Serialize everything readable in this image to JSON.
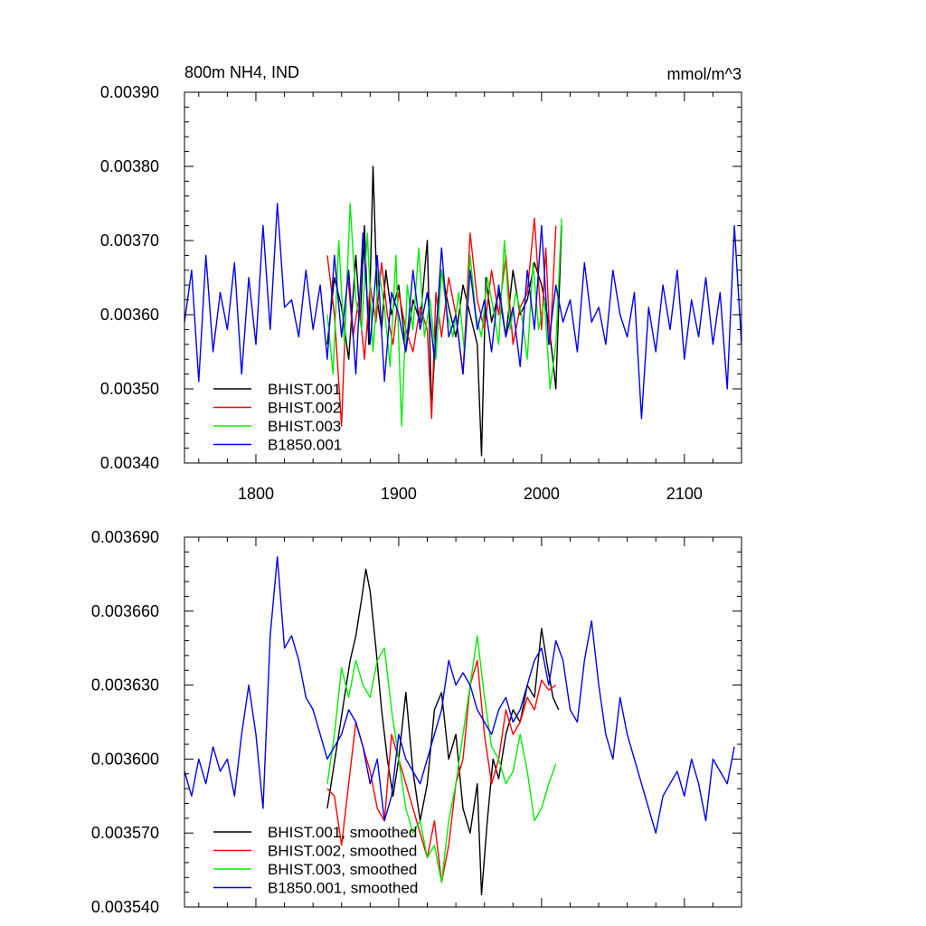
{
  "chart_data": [
    {
      "type": "line",
      "title": "800m NH4, IND",
      "units": "mmol/m^3",
      "xlim": [
        1750,
        2140
      ],
      "ylim": [
        0.0034,
        0.0039
      ],
      "x_ticks": [
        1800,
        1900,
        2000,
        2100
      ],
      "x_tick_labels": [
        "1800",
        "1900",
        "2000",
        "2100"
      ],
      "y_ticks": [
        0.0034,
        0.0035,
        0.0036,
        0.0037,
        0.0038,
        0.0039
      ],
      "y_tick_labels": [
        "0.00340",
        "0.00350",
        "0.00360",
        "0.00370",
        "0.00380",
        "0.00390"
      ],
      "legend_position": "bottom-left",
      "series": [
        {
          "name": "BHIST.001",
          "color": "#000000",
          "x": [
            1850,
            1855,
            1860,
            1865,
            1870,
            1873,
            1876,
            1879,
            1882,
            1885,
            1888,
            1891,
            1895,
            1900,
            1905,
            1910,
            1915,
            1920,
            1923,
            1926,
            1930,
            1935,
            1940,
            1945,
            1950,
            1955,
            1958,
            1961,
            1965,
            1970,
            1975,
            1980,
            1985,
            1990,
            1995,
            2000,
            2005,
            2010,
            2014
          ],
          "y": [
            0.00356,
            0.00365,
            0.00361,
            0.00354,
            0.00368,
            0.00359,
            0.00372,
            0.00356,
            0.0038,
            0.00362,
            0.00358,
            0.00366,
            0.0036,
            0.00364,
            0.00355,
            0.00362,
            0.00359,
            0.0037,
            0.00347,
            0.00358,
            0.00366,
            0.00361,
            0.00357,
            0.00364,
            0.0036,
            0.00356,
            0.00341,
            0.00365,
            0.00359,
            0.00363,
            0.00357,
            0.00366,
            0.0036,
            0.00362,
            0.00367,
            0.00364,
            0.00359,
            0.0035,
            0.00372
          ]
        },
        {
          "name": "BHIST.002",
          "color": "#ff0000",
          "x": [
            1850,
            1855,
            1860,
            1864,
            1868,
            1872,
            1876,
            1880,
            1884,
            1888,
            1892,
            1896,
            1900,
            1905,
            1910,
            1915,
            1920,
            1923,
            1926,
            1930,
            1935,
            1940,
            1945,
            1950,
            1955,
            1960,
            1965,
            1970,
            1975,
            1980,
            1985,
            1990,
            1995,
            2000,
            2003,
            2006,
            2010
          ],
          "y": [
            0.00368,
            0.0036,
            0.00345,
            0.00366,
            0.00357,
            0.00362,
            0.00354,
            0.00364,
            0.00359,
            0.00367,
            0.0036,
            0.00356,
            0.00363,
            0.00358,
            0.00355,
            0.00361,
            0.00358,
            0.00346,
            0.00363,
            0.00357,
            0.00365,
            0.0036,
            0.00352,
            0.00371,
            0.00362,
            0.00358,
            0.00366,
            0.0036,
            0.00368,
            0.00356,
            0.00361,
            0.00363,
            0.00373,
            0.00358,
            0.00369,
            0.00356,
            0.00372
          ]
        },
        {
          "name": "BHIST.003",
          "color": "#00ee00",
          "x": [
            1850,
            1854,
            1858,
            1862,
            1866,
            1870,
            1874,
            1878,
            1882,
            1886,
            1890,
            1894,
            1898,
            1902,
            1906,
            1910,
            1914,
            1918,
            1922,
            1926,
            1930,
            1934,
            1938,
            1942,
            1946,
            1950,
            1954,
            1958,
            1962,
            1966,
            1970,
            1974,
            1978,
            1982,
            1986,
            1990,
            1994,
            1998,
            2002,
            2006,
            2010,
            2014
          ],
          "y": [
            0.0036,
            0.00352,
            0.0037,
            0.00356,
            0.00375,
            0.00362,
            0.00358,
            0.00371,
            0.00355,
            0.00366,
            0.00361,
            0.00353,
            0.00368,
            0.00345,
            0.00364,
            0.00358,
            0.00369,
            0.00357,
            0.00362,
            0.00354,
            0.00366,
            0.0036,
            0.00357,
            0.00363,
            0.00355,
            0.00368,
            0.0036,
            0.00357,
            0.00365,
            0.00361,
            0.00356,
            0.0037,
            0.00358,
            0.00363,
            0.0036,
            0.00354,
            0.00367,
            0.00358,
            0.00362,
            0.0035,
            0.00356,
            0.00373
          ]
        },
        {
          "name": "B1850.001",
          "color": "#0000ee",
          "x": [
            1750,
            1755,
            1760,
            1765,
            1770,
            1775,
            1780,
            1785,
            1790,
            1795,
            1800,
            1805,
            1810,
            1815,
            1820,
            1825,
            1830,
            1835,
            1840,
            1845,
            1850,
            1855,
            1860,
            1865,
            1870,
            1875,
            1880,
            1885,
            1890,
            1895,
            1900,
            1905,
            1910,
            1915,
            1920,
            1925,
            1930,
            1935,
            1940,
            1945,
            1950,
            1955,
            1960,
            1965,
            1970,
            1975,
            1980,
            1985,
            1990,
            1995,
            2000,
            2005,
            2010,
            2015,
            2020,
            2025,
            2030,
            2035,
            2040,
            2045,
            2050,
            2055,
            2060,
            2065,
            2070,
            2075,
            2080,
            2085,
            2090,
            2095,
            2100,
            2105,
            2110,
            2115,
            2120,
            2125,
            2130,
            2135,
            2140
          ],
          "y": [
            0.00359,
            0.00366,
            0.00351,
            0.00368,
            0.00355,
            0.00363,
            0.00358,
            0.00367,
            0.00352,
            0.00365,
            0.00356,
            0.00372,
            0.00358,
            0.00375,
            0.00361,
            0.00362,
            0.00357,
            0.00366,
            0.00358,
            0.00364,
            0.00354,
            0.00368,
            0.00357,
            0.00366,
            0.00352,
            0.00371,
            0.00356,
            0.00368,
            0.00351,
            0.00363,
            0.0036,
            0.00355,
            0.00366,
            0.00358,
            0.00363,
            0.00354,
            0.00369,
            0.00357,
            0.0036,
            0.00352,
            0.00366,
            0.00358,
            0.00362,
            0.00355,
            0.00364,
            0.00357,
            0.00361,
            0.00353,
            0.00366,
            0.00358,
            0.00372,
            0.00356,
            0.00364,
            0.00359,
            0.00362,
            0.00355,
            0.00367,
            0.00359,
            0.00361,
            0.00356,
            0.00366,
            0.0036,
            0.00357,
            0.00363,
            0.00346,
            0.00361,
            0.00355,
            0.00364,
            0.00358,
            0.00366,
            0.00354,
            0.00362,
            0.00357,
            0.00365,
            0.00356,
            0.00363,
            0.0035,
            0.00372,
            0.00356
          ]
        }
      ]
    },
    {
      "type": "line",
      "xlim": [
        1750,
        2140
      ],
      "ylim": [
        0.00354,
        0.00369
      ],
      "x_ticks": [
        1800,
        1900,
        2000,
        2100
      ],
      "y_ticks": [
        0.00354,
        0.00357,
        0.0036,
        0.00363,
        0.00366,
        0.00369
      ],
      "y_tick_labels": [
        "0.003540",
        "0.003570",
        "0.003600",
        "0.003630",
        "0.003660",
        "0.003690"
      ],
      "legend_position": "bottom-left",
      "series": [
        {
          "name": "BHIST.001, smoothed",
          "color": "#000000",
          "x": [
            1850,
            1854,
            1858,
            1862,
            1866,
            1870,
            1874,
            1877,
            1880,
            1884,
            1888,
            1892,
            1896,
            1900,
            1905,
            1910,
            1915,
            1920,
            1925,
            1930,
            1935,
            1940,
            1945,
            1950,
            1955,
            1958,
            1962,
            1966,
            1970,
            1975,
            1980,
            1985,
            1990,
            1995,
            2000,
            2004,
            2008,
            2012
          ],
          "y": [
            0.00358,
            0.003595,
            0.00361,
            0.003625,
            0.00364,
            0.00365,
            0.003665,
            0.003677,
            0.003668,
            0.003645,
            0.00362,
            0.0036,
            0.003585,
            0.0036,
            0.003627,
            0.003595,
            0.003575,
            0.00359,
            0.00362,
            0.003627,
            0.0036,
            0.00361,
            0.00358,
            0.00357,
            0.00359,
            0.003545,
            0.003575,
            0.0036,
            0.003592,
            0.00361,
            0.00362,
            0.003615,
            0.00363,
            0.003625,
            0.003653,
            0.003638,
            0.003625,
            0.00362
          ]
        },
        {
          "name": "BHIST.002, smoothed",
          "color": "#ff0000",
          "x": [
            1850,
            1855,
            1860,
            1865,
            1870,
            1875,
            1880,
            1885,
            1890,
            1895,
            1900,
            1905,
            1910,
            1915,
            1920,
            1925,
            1930,
            1935,
            1940,
            1945,
            1950,
            1955,
            1960,
            1965,
            1970,
            1975,
            1980,
            1985,
            1990,
            1995,
            2000,
            2005,
            2010
          ],
          "y": [
            0.003588,
            0.003585,
            0.003565,
            0.00359,
            0.003615,
            0.003605,
            0.003595,
            0.00358,
            0.003575,
            0.00361,
            0.0036,
            0.00359,
            0.00358,
            0.00357,
            0.00356,
            0.003575,
            0.00355,
            0.003565,
            0.00359,
            0.0036,
            0.00363,
            0.00364,
            0.00361,
            0.00359,
            0.0036,
            0.00362,
            0.00361,
            0.003615,
            0.003625,
            0.00362,
            0.003632,
            0.003628,
            0.00363
          ]
        },
        {
          "name": "BHIST.003, smoothed",
          "color": "#00ee00",
          "x": [
            1850,
            1855,
            1860,
            1865,
            1870,
            1875,
            1880,
            1885,
            1890,
            1895,
            1900,
            1905,
            1910,
            1915,
            1920,
            1925,
            1930,
            1935,
            1940,
            1945,
            1950,
            1955,
            1960,
            1965,
            1970,
            1975,
            1980,
            1985,
            1990,
            1995,
            2000,
            2005,
            2010
          ],
          "y": [
            0.00359,
            0.00361,
            0.003637,
            0.003625,
            0.00364,
            0.00363,
            0.003625,
            0.00364,
            0.003645,
            0.00362,
            0.0036,
            0.00358,
            0.00357,
            0.003575,
            0.00356,
            0.003565,
            0.00355,
            0.003575,
            0.00359,
            0.00361,
            0.00363,
            0.00365,
            0.003625,
            0.003605,
            0.0036,
            0.00359,
            0.003595,
            0.00361,
            0.003595,
            0.003575,
            0.00358,
            0.00359,
            0.003598
          ]
        },
        {
          "name": "B1850.001, smoothed",
          "color": "#0000ee",
          "x": [
            1750,
            1755,
            1760,
            1765,
            1770,
            1775,
            1780,
            1785,
            1790,
            1795,
            1800,
            1805,
            1810,
            1815,
            1820,
            1825,
            1830,
            1835,
            1840,
            1845,
            1850,
            1855,
            1860,
            1865,
            1870,
            1875,
            1880,
            1885,
            1890,
            1895,
            1900,
            1905,
            1910,
            1915,
            1920,
            1925,
            1930,
            1935,
            1940,
            1945,
            1950,
            1955,
            1960,
            1965,
            1970,
            1975,
            1980,
            1985,
            1990,
            1995,
            2000,
            2005,
            2010,
            2015,
            2020,
            2025,
            2030,
            2035,
            2040,
            2045,
            2050,
            2055,
            2060,
            2065,
            2070,
            2075,
            2080,
            2085,
            2090,
            2095,
            2100,
            2105,
            2110,
            2115,
            2120,
            2125,
            2130,
            2135
          ],
          "y": [
            0.003595,
            0.003585,
            0.0036,
            0.00359,
            0.003605,
            0.003595,
            0.0036,
            0.003585,
            0.00361,
            0.00363,
            0.00361,
            0.00358,
            0.00365,
            0.003682,
            0.003645,
            0.00365,
            0.00364,
            0.003625,
            0.00362,
            0.00361,
            0.0036,
            0.003605,
            0.00361,
            0.00362,
            0.003615,
            0.003605,
            0.00359,
            0.0036,
            0.003575,
            0.003585,
            0.00361,
            0.0036,
            0.003595,
            0.00359,
            0.0036,
            0.00361,
            0.00362,
            0.00364,
            0.00363,
            0.003635,
            0.00363,
            0.00362,
            0.003615,
            0.00361,
            0.00362,
            0.003625,
            0.003615,
            0.00362,
            0.00363,
            0.00364,
            0.003645,
            0.00363,
            0.003648,
            0.00364,
            0.00362,
            0.003615,
            0.00364,
            0.003656,
            0.00363,
            0.00361,
            0.0036,
            0.003625,
            0.00361,
            0.0036,
            0.00359,
            0.00358,
            0.00357,
            0.003585,
            0.00359,
            0.003595,
            0.003585,
            0.0036,
            0.00359,
            0.003575,
            0.0036,
            0.003595,
            0.00359,
            0.003605
          ]
        }
      ]
    }
  ]
}
